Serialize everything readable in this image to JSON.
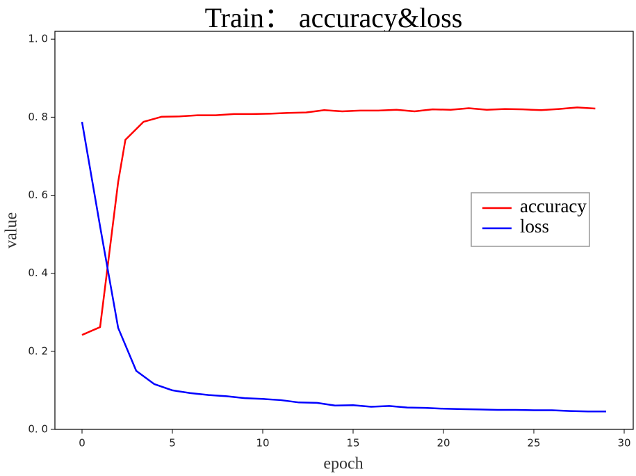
{
  "chart_data": {
    "type": "line",
    "title": "Train：  accuracy&loss",
    "xlabel": "epoch",
    "ylabel": "value",
    "xlim": [
      -1.5,
      30.5
    ],
    "ylim": [
      0.0,
      1.02
    ],
    "xticks": [
      0,
      5,
      10,
      15,
      20,
      25,
      30
    ],
    "xtick_labels": [
      "0",
      "5",
      "10",
      "15",
      "20",
      "25",
      "30"
    ],
    "yticks": [
      0.0,
      0.2,
      0.4,
      0.6,
      0.8,
      1.0
    ],
    "ytick_labels": [
      "0. 0",
      "0. 2",
      "0. 4",
      "0. 6",
      "0. 8",
      "1. 0"
    ],
    "grid": false,
    "legend_position": "right",
    "x": [
      0,
      1,
      2,
      2.4,
      3.4,
      4.4,
      5.4,
      6.4,
      7.4,
      8.4,
      9.4,
      10.4,
      11.4,
      12.4,
      13.4,
      14.4,
      15.4,
      16.4,
      17.4,
      18.4,
      19.4,
      20.4,
      21.4,
      22.4,
      23.4,
      24.4,
      25.4,
      26.4,
      27.4,
      28.4
    ],
    "series": [
      {
        "name": "accuracy",
        "color": "#ff0000",
        "values": [
          0.242,
          0.262,
          0.634,
          0.742,
          0.788,
          0.801,
          0.802,
          0.805,
          0.805,
          0.808,
          0.808,
          0.809,
          0.811,
          0.812,
          0.818,
          0.815,
          0.817,
          0.817,
          0.819,
          0.815,
          0.82,
          0.819,
          0.823,
          0.819,
          0.821,
          0.82,
          0.818,
          0.821,
          0.825,
          0.822
        ]
      },
      {
        "name": "loss",
        "color": "#0000ff",
        "x": [
          0,
          1,
          2,
          3,
          4,
          5,
          6,
          7,
          8,
          9,
          10,
          11,
          12,
          13,
          14,
          15,
          16,
          17,
          18,
          19,
          20,
          21,
          22,
          23,
          24,
          25,
          26,
          27,
          28,
          29
        ],
        "values": [
          0.788,
          0.52,
          0.26,
          0.15,
          0.116,
          0.1,
          0.093,
          0.088,
          0.085,
          0.08,
          0.078,
          0.075,
          0.069,
          0.068,
          0.061,
          0.062,
          0.058,
          0.06,
          0.056,
          0.055,
          0.053,
          0.052,
          0.051,
          0.05,
          0.05,
          0.049,
          0.049,
          0.047,
          0.046,
          0.046
        ]
      }
    ]
  }
}
